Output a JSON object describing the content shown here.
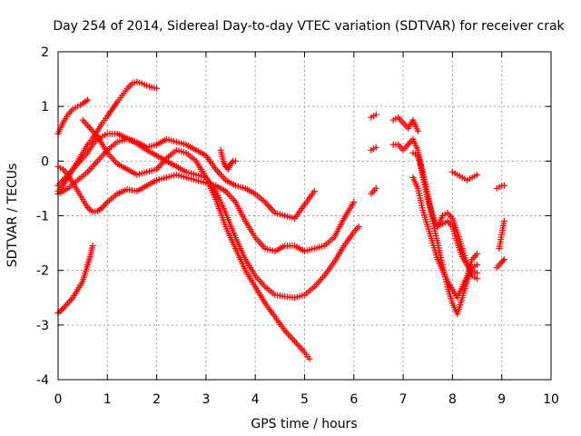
{
  "chart_data": {
    "type": "scatter",
    "title": "Day 254 of 2014, Sidereal Day-to-day VTEC variation (SDTVAR) for receiver crak",
    "xlabel": "GPS time / hours",
    "ylabel": "SDTVAR / TECUs",
    "xlim": [
      0,
      10
    ],
    "ylim": [
      -4,
      2
    ],
    "xticks": [
      "0",
      "1",
      "2",
      "3",
      "4",
      "5",
      "6",
      "7",
      "8",
      "9",
      "10"
    ],
    "yticks": [
      "-4",
      "-3",
      "-2",
      "-1",
      "0",
      "1",
      "2"
    ],
    "grid": true,
    "marker": "plus",
    "color": "#ff0000",
    "series": [
      {
        "x": [
          0.0,
          0.1,
          0.2,
          0.3,
          0.4,
          0.5,
          0.6
        ],
        "y": [
          0.5,
          0.7,
          0.85,
          0.95,
          1.0,
          1.05,
          1.12
        ]
      },
      {
        "x": [
          0.0,
          0.1,
          0.2,
          0.3,
          0.4,
          0.5,
          0.55,
          0.6,
          0.65,
          0.7
        ],
        "y": [
          -2.78,
          -2.7,
          -2.6,
          -2.5,
          -2.35,
          -2.2,
          -2.05,
          -1.9,
          -1.75,
          -1.55
        ]
      },
      {
        "x": [
          0.0,
          0.1,
          0.2,
          0.3,
          0.4,
          0.5,
          0.6,
          0.7,
          0.8,
          0.9,
          1.0,
          1.1,
          1.2,
          1.3,
          1.4,
          1.5,
          1.6,
          1.7,
          1.8,
          1.9,
          2.0
        ],
        "y": [
          -0.55,
          -0.45,
          -0.3,
          -0.15,
          0.0,
          0.15,
          0.3,
          0.42,
          0.55,
          0.7,
          0.82,
          0.95,
          1.08,
          1.2,
          1.32,
          1.42,
          1.45,
          1.42,
          1.38,
          1.35,
          1.33
        ]
      },
      {
        "x": [
          0.0,
          0.1,
          0.2,
          0.3,
          0.4,
          0.5,
          0.6,
          0.7,
          0.8,
          0.9,
          1.0,
          1.2,
          1.4,
          1.6,
          1.8,
          2.0,
          2.2,
          2.4,
          2.6,
          2.8,
          3.0,
          3.2,
          3.4,
          3.6,
          3.8,
          4.0,
          4.2,
          4.4,
          4.6,
          4.8,
          5.0,
          5.2,
          5.4,
          5.6,
          5.8,
          6.0
        ],
        "y": [
          -0.1,
          -0.15,
          -0.25,
          -0.4,
          -0.55,
          -0.7,
          -0.85,
          -0.93,
          -0.92,
          -0.85,
          -0.75,
          -0.6,
          -0.52,
          -0.55,
          -0.45,
          -0.35,
          -0.3,
          -0.25,
          -0.3,
          -0.35,
          -0.4,
          -0.45,
          -0.55,
          -0.75,
          -1.1,
          -1.4,
          -1.6,
          -1.65,
          -1.55,
          -1.55,
          -1.65,
          -1.6,
          -1.55,
          -1.4,
          -1.05,
          -0.75
        ]
      },
      {
        "x": [
          0.0,
          0.1,
          0.2,
          0.3,
          0.4,
          0.5,
          0.6,
          0.7,
          0.8,
          0.9,
          1.0,
          1.2,
          1.4,
          1.6,
          1.8,
          2.0,
          2.2,
          2.4,
          2.6,
          2.8,
          3.0,
          3.2,
          3.4,
          3.6,
          3.8,
          4.0,
          4.2,
          4.4,
          4.6,
          4.8,
          5.0,
          5.2,
          5.4,
          5.6,
          5.8,
          6.0,
          6.1
        ],
        "y": [
          -0.45,
          -0.35,
          -0.25,
          -0.15,
          -0.05,
          0.05,
          0.15,
          0.3,
          0.4,
          0.45,
          0.5,
          0.5,
          0.42,
          0.32,
          0.2,
          0.1,
          0.0,
          -0.1,
          -0.2,
          -0.25,
          -0.3,
          -0.55,
          -0.95,
          -1.4,
          -1.8,
          -2.1,
          -2.3,
          -2.45,
          -2.48,
          -2.5,
          -2.45,
          -2.3,
          -2.1,
          -1.85,
          -1.55,
          -1.3,
          -1.2
        ]
      },
      {
        "x": [
          0.5,
          0.6,
          0.7,
          0.8,
          0.9,
          1.0,
          1.1,
          1.2,
          1.4,
          1.6,
          1.8,
          2.0,
          2.2,
          2.4,
          2.6,
          2.8,
          3.0,
          3.2,
          3.4,
          3.6,
          3.8,
          4.0,
          4.2,
          4.4,
          4.6,
          4.8,
          5.0,
          5.1
        ],
        "y": [
          0.75,
          0.65,
          0.55,
          0.45,
          0.3,
          0.15,
          0.05,
          -0.05,
          -0.15,
          -0.25,
          -0.2,
          -0.15,
          0.05,
          0.2,
          0.15,
          0.0,
          -0.3,
          -0.7,
          -1.2,
          -1.6,
          -2.0,
          -2.3,
          -2.6,
          -2.85,
          -3.1,
          -3.3,
          -3.5,
          -3.62
        ]
      },
      {
        "x": [
          0.0,
          0.2,
          0.4,
          0.6,
          0.8,
          1.0,
          1.2,
          1.4,
          1.6,
          1.8,
          2.0,
          2.2,
          2.4,
          2.6,
          2.8,
          3.0,
          3.2,
          3.4,
          3.6,
          3.8,
          4.0,
          4.2,
          4.4,
          4.6,
          4.8,
          5.0,
          5.2
        ],
        "y": [
          -0.6,
          -0.5,
          -0.35,
          -0.2,
          0.0,
          0.2,
          0.35,
          0.4,
          0.35,
          0.25,
          0.3,
          0.4,
          0.35,
          0.3,
          0.2,
          0.1,
          -0.15,
          -0.35,
          -0.45,
          -0.5,
          -0.6,
          -0.75,
          -0.95,
          -1.0,
          -1.05,
          -0.8,
          -0.55
        ]
      },
      {
        "x": [
          3.3,
          3.35,
          3.4,
          3.45,
          3.5,
          3.55,
          3.6
        ],
        "y": [
          0.2,
          0.0,
          -0.1,
          -0.15,
          -0.05,
          0.0,
          0.0
        ]
      },
      {
        "x": [
          6.35,
          6.45
        ],
        "y": [
          0.8,
          0.85
        ]
      },
      {
        "x": [
          6.35,
          6.45
        ],
        "y": [
          0.2,
          0.25
        ]
      },
      {
        "x": [
          6.35,
          6.45
        ],
        "y": [
          -0.6,
          -0.5
        ]
      },
      {
        "x": [
          6.8,
          6.9,
          7.0,
          7.1,
          7.2,
          7.3
        ],
        "y": [
          0.75,
          0.8,
          0.7,
          0.6,
          0.75,
          0.55
        ]
      },
      {
        "x": [
          6.8,
          6.9,
          7.0,
          7.1,
          7.2,
          7.3,
          7.4,
          7.5,
          7.6,
          7.7,
          7.8,
          7.9,
          8.0,
          8.1,
          8.2,
          8.3,
          8.4,
          8.5
        ],
        "y": [
          0.3,
          0.3,
          0.2,
          0.3,
          0.4,
          0.2,
          -0.3,
          -0.7,
          -1.0,
          -1.2,
          -1.15,
          -1.1,
          -1.2,
          -1.5,
          -1.75,
          -1.9,
          -2.0,
          -2.05
        ]
      },
      {
        "x": [
          7.2,
          7.3,
          7.4,
          7.5,
          7.6,
          7.7,
          7.8,
          7.9,
          8.0,
          8.1,
          8.2,
          8.3,
          8.4,
          8.5
        ],
        "y": [
          -0.3,
          -0.5,
          -0.9,
          -1.2,
          -1.5,
          -1.8,
          -2.0,
          -2.2,
          -2.35,
          -2.5,
          -2.3,
          -2.1,
          -1.8,
          -1.7
        ]
      },
      {
        "x": [
          7.2,
          7.3,
          7.4,
          7.5,
          7.6,
          7.7,
          7.8,
          7.9,
          8.0,
          8.1,
          8.2,
          8.3,
          8.4,
          8.5
        ],
        "y": [
          0.15,
          0.1,
          -0.2,
          -0.6,
          -1.1,
          -1.5,
          -1.9,
          -2.3,
          -2.6,
          -2.8,
          -2.5,
          -2.2,
          -1.95,
          -1.9
        ]
      },
      {
        "x": [
          7.7,
          7.8,
          7.9,
          8.0,
          8.1,
          8.2,
          8.3,
          8.4,
          8.5
        ],
        "y": [
          -1.2,
          -1.0,
          -0.95,
          -1.05,
          -1.3,
          -1.6,
          -1.9,
          -2.1,
          -2.15
        ]
      },
      {
        "x": [
          8.0,
          8.1,
          8.2,
          8.3,
          8.4,
          8.5
        ],
        "y": [
          -0.2,
          -0.25,
          -0.3,
          -0.35,
          -0.3,
          -0.25
        ]
      },
      {
        "x": [
          8.9,
          9.0,
          9.05
        ],
        "y": [
          -0.5,
          -0.45,
          -0.45
        ]
      },
      {
        "x": [
          8.95,
          9.0,
          9.05
        ],
        "y": [
          -1.6,
          -1.35,
          -1.1
        ]
      },
      {
        "x": [
          8.9,
          9.0,
          9.05
        ],
        "y": [
          -1.95,
          -1.85,
          -1.8
        ]
      }
    ]
  }
}
